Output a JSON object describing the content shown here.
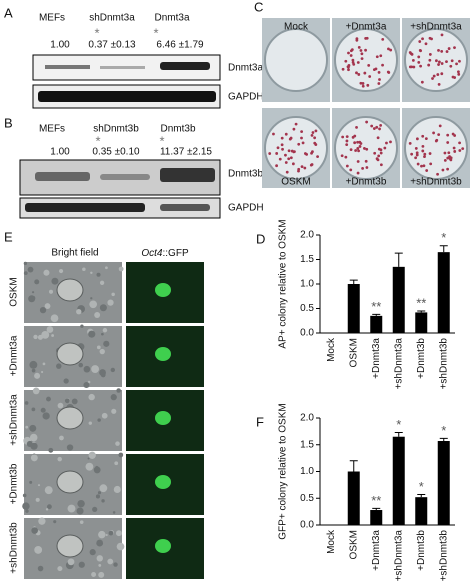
{
  "panels": {
    "A": {
      "label": "A",
      "columns": [
        "MEFs",
        "shDnmt3a",
        "Dnmt3a"
      ],
      "markers": [
        "*",
        "*"
      ],
      "ratios": [
        "1.00",
        "0.37 ±0.13",
        "6.46 ±1.79"
      ],
      "blots": [
        "Dnmt3a",
        "GAPDH"
      ]
    },
    "B": {
      "label": "B",
      "columns": [
        "MEFs",
        "shDnmt3b",
        "Dnmt3b"
      ],
      "markers": [
        "*",
        "*"
      ],
      "ratios": [
        "1.00",
        "0.35 ±0.10",
        "11.37 ±2.15"
      ],
      "blots": [
        "Dnmt3b",
        "GAPDH"
      ]
    },
    "C": {
      "label": "C",
      "plates": [
        "Mock",
        "+Dnmt3a",
        "+shDnmt3a",
        "OSKM",
        "+Dnmt3b",
        "+shDnmt3b"
      ]
    },
    "E": {
      "label": "E",
      "bright": "Bright field",
      "gene": "Oct4",
      "reporter": "::GFP",
      "rows": [
        "OSKM",
        "+Dnmt3a",
        "+shDnmt3a",
        "+Dnmt3b",
        "+shDnmt3b"
      ]
    }
  },
  "chart_data": [
    {
      "type": "bar",
      "panel": "D",
      "y_label": "AP+ colony relative to OSKM",
      "color": "#000000",
      "categories": [
        "Mock",
        "OSKM",
        "+Dnmt3a",
        "+shDnmt3a",
        "+Dnmt3b",
        "+shDnmt3b"
      ],
      "values": [
        0,
        1.0,
        0.35,
        1.35,
        0.42,
        1.65
      ],
      "errors": [
        0,
        0.08,
        0.03,
        0.28,
        0.03,
        0.13
      ],
      "annotations": [
        null,
        null,
        "**",
        null,
        "**",
        "*"
      ],
      "ylim": [
        0,
        2
      ],
      "yticks": [
        {
          "value": 0,
          "label": "0.0"
        },
        0.5,
        {
          "value": 1,
          "label": "1.0"
        },
        1.5,
        {
          "value": 2,
          "label": "2.0"
        }
      ]
    },
    {
      "type": "bar",
      "panel": "F",
      "y_label": "GFP+ colony relative to OSKM",
      "color": "#000000",
      "categories": [
        "Mock",
        "OSKM",
        "+Dnmt3a",
        "+shDnmt3a",
        "+Dnmt3b",
        "+shDnmt3b"
      ],
      "values": [
        0,
        1.0,
        0.28,
        1.65,
        0.52,
        1.57
      ],
      "errors": [
        0,
        0.2,
        0.03,
        0.08,
        0.05,
        0.05
      ],
      "annotations": [
        null,
        null,
        "**",
        "*",
        "*",
        "*"
      ],
      "ylim": [
        0,
        2
      ],
      "yticks": [
        {
          "value": 0,
          "label": "0.0"
        },
        0.5,
        {
          "value": 1,
          "label": "1.0"
        },
        1.5,
        {
          "value": 2,
          "label": "2.0"
        }
      ]
    }
  ]
}
